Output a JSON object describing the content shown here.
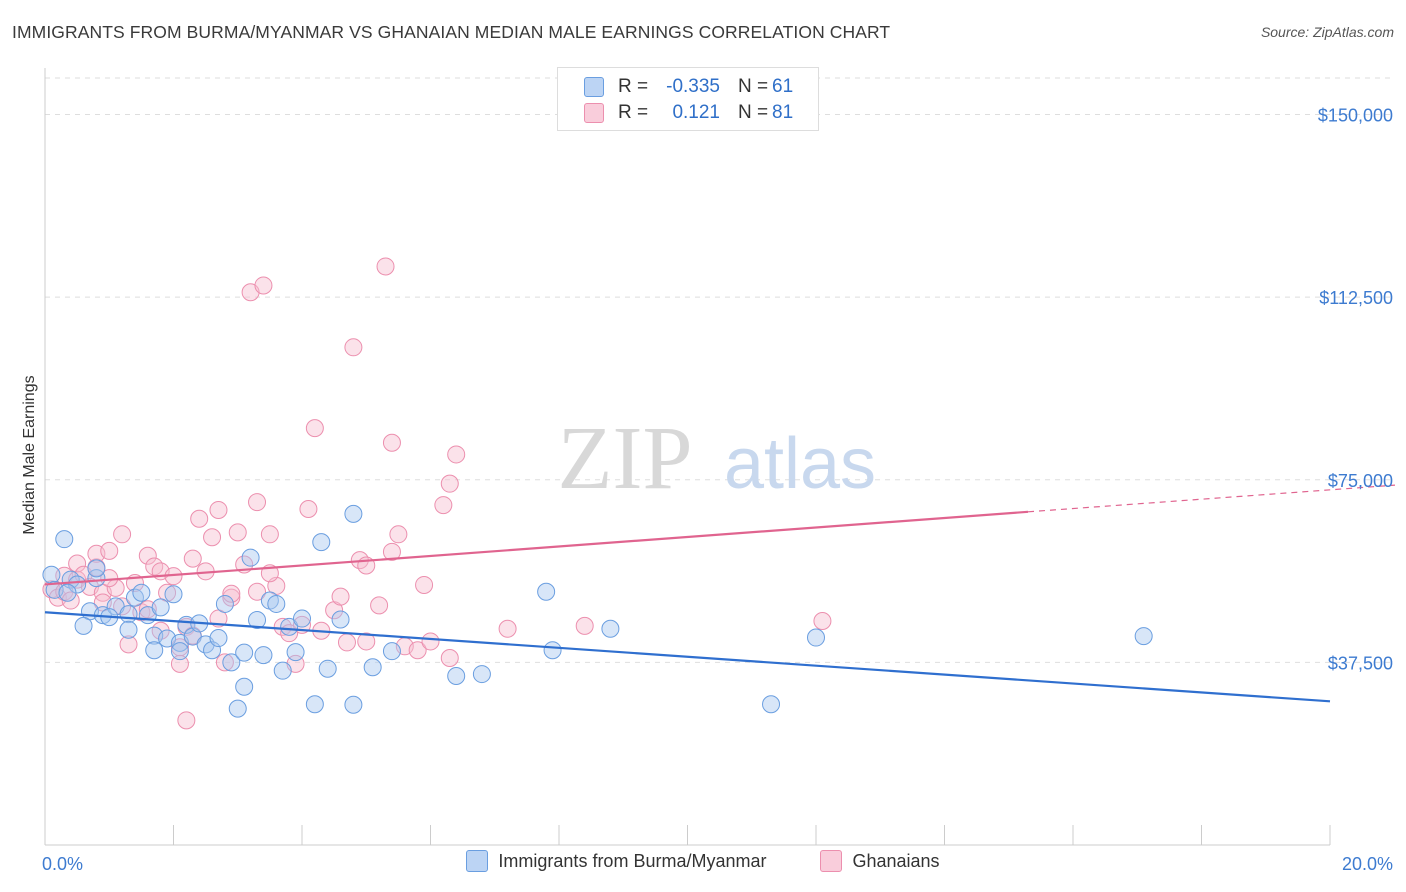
{
  "header": {
    "title": "IMMIGRANTS FROM BURMA/MYANMAR VS GHANAIAN MEDIAN MALE EARNINGS CORRELATION CHART",
    "source": "Source: ZipAtlas.com"
  },
  "legend": {
    "rows": [
      {
        "r_label": "R =",
        "r_value": "-0.335",
        "n_label": "N =",
        "n_value": "61"
      },
      {
        "r_label": "R =",
        "r_value": "0.121",
        "n_label": "N =",
        "n_value": "81"
      }
    ]
  },
  "colors": {
    "blue_fill": "#a9c8f0",
    "blue_stroke": "#6a9ee0",
    "blue_line": "#2f6fcf",
    "pink_fill": "#f7bfd1",
    "pink_stroke": "#ec8fae",
    "pink_line": "#e0648f",
    "axis_text": "#3d7bd0",
    "grid": "#dddddd"
  },
  "watermark": {
    "zip": "ZIP",
    "atlas": "atlas"
  },
  "chart_data": {
    "type": "scatter",
    "title": "IMMIGRANTS FROM BURMA/MYANMAR VS GHANAIAN MEDIAN MALE EARNINGS CORRELATION CHART",
    "xlabel": "",
    "ylabel": "Median Male Earnings",
    "xlim": [
      0,
      20
    ],
    "ylim": [
      0,
      157500
    ],
    "x_ticks": [
      {
        "v": 0,
        "label": "0.0%"
      },
      {
        "v": 20,
        "label": "20.0%"
      }
    ],
    "y_ticks": [
      {
        "v": 37500,
        "label": "$37,500"
      },
      {
        "v": 75000,
        "label": "$75,000"
      },
      {
        "v": 112500,
        "label": "$112,500"
      },
      {
        "v": 150000,
        "label": "$150,000"
      }
    ],
    "grid": true,
    "legend_position": "top-center",
    "series": [
      {
        "name": "Immigrants from Burma/Myanmar",
        "color": "#a9c8f0",
        "trend": {
          "x0": 0,
          "y0": 47800,
          "x1": 20,
          "y1": 29500,
          "dashed_from": null
        },
        "points": [
          [
            0.1,
            55500
          ],
          [
            0.3,
            62800
          ],
          [
            0.4,
            54500
          ],
          [
            0.5,
            53500
          ],
          [
            0.7,
            48000
          ],
          [
            0.6,
            45000
          ],
          [
            0.8,
            54800
          ],
          [
            0.8,
            56800
          ],
          [
            0.9,
            47200
          ],
          [
            1.1,
            49000
          ],
          [
            1.0,
            46800
          ],
          [
            1.3,
            47400
          ],
          [
            1.3,
            44200
          ],
          [
            1.4,
            50800
          ],
          [
            1.5,
            51800
          ],
          [
            1.6,
            47200
          ],
          [
            1.7,
            43000
          ],
          [
            1.7,
            40000
          ],
          [
            1.8,
            48800
          ],
          [
            1.9,
            42400
          ],
          [
            2.0,
            51500
          ],
          [
            2.1,
            41500
          ],
          [
            2.1,
            39800
          ],
          [
            2.2,
            45200
          ],
          [
            2.3,
            42800
          ],
          [
            2.4,
            45500
          ],
          [
            2.5,
            41200
          ],
          [
            2.6,
            40000
          ],
          [
            2.7,
            42500
          ],
          [
            2.8,
            49500
          ],
          [
            2.9,
            37500
          ],
          [
            3.0,
            28000
          ],
          [
            3.1,
            32500
          ],
          [
            3.1,
            39500
          ],
          [
            3.2,
            59000
          ],
          [
            3.3,
            46200
          ],
          [
            3.4,
            39000
          ],
          [
            3.5,
            50200
          ],
          [
            3.6,
            49500
          ],
          [
            3.7,
            35800
          ],
          [
            3.8,
            44800
          ],
          [
            3.9,
            39600
          ],
          [
            4.0,
            46500
          ],
          [
            4.2,
            28900
          ],
          [
            4.3,
            62200
          ],
          [
            4.4,
            36200
          ],
          [
            4.6,
            46300
          ],
          [
            4.8,
            28800
          ],
          [
            4.8,
            68000
          ],
          [
            5.1,
            36500
          ],
          [
            5.4,
            39800
          ],
          [
            6.4,
            34700
          ],
          [
            6.8,
            35100
          ],
          [
            7.8,
            52000
          ],
          [
            7.9,
            40000
          ],
          [
            8.8,
            44400
          ],
          [
            11.3,
            28900
          ],
          [
            12.0,
            42600
          ],
          [
            17.1,
            42900
          ],
          [
            0.15,
            52400
          ],
          [
            0.35,
            51800
          ]
        ]
      },
      {
        "name": "Ghanaians",
        "color": "#f7bfd1",
        "trend": {
          "x0": 0,
          "y0": 53500,
          "x1": 20,
          "y1": 73000,
          "dashed_from": 15.3
        },
        "points": [
          [
            0.1,
            52500
          ],
          [
            0.2,
            50800
          ],
          [
            0.3,
            55300
          ],
          [
            0.3,
            52000
          ],
          [
            0.5,
            54500
          ],
          [
            0.5,
            57800
          ],
          [
            0.6,
            55500
          ],
          [
            0.7,
            53000
          ],
          [
            0.8,
            57000
          ],
          [
            0.8,
            59800
          ],
          [
            0.9,
            51800
          ],
          [
            1.0,
            60400
          ],
          [
            1.1,
            52800
          ],
          [
            1.2,
            63800
          ],
          [
            1.2,
            49000
          ],
          [
            1.3,
            41200
          ],
          [
            1.4,
            53800
          ],
          [
            1.5,
            47800
          ],
          [
            1.6,
            59400
          ],
          [
            1.7,
            57200
          ],
          [
            1.8,
            56200
          ],
          [
            1.8,
            44000
          ],
          [
            1.9,
            51800
          ],
          [
            2.0,
            55200
          ],
          [
            2.1,
            40600
          ],
          [
            2.1,
            37200
          ],
          [
            2.2,
            25600
          ],
          [
            2.2,
            44800
          ],
          [
            2.3,
            43000
          ],
          [
            2.4,
            67000
          ],
          [
            2.5,
            56200
          ],
          [
            2.6,
            63200
          ],
          [
            2.7,
            68800
          ],
          [
            2.7,
            46500
          ],
          [
            2.8,
            37500
          ],
          [
            2.9,
            50800
          ],
          [
            3.0,
            64200
          ],
          [
            3.1,
            57600
          ],
          [
            3.2,
            113500
          ],
          [
            3.3,
            70400
          ],
          [
            3.3,
            52000
          ],
          [
            3.4,
            114900
          ],
          [
            3.5,
            63800
          ],
          [
            3.6,
            53200
          ],
          [
            3.7,
            44800
          ],
          [
            3.8,
            43500
          ],
          [
            3.9,
            37200
          ],
          [
            4.1,
            69000
          ],
          [
            4.2,
            85600
          ],
          [
            4.3,
            44000
          ],
          [
            4.5,
            48200
          ],
          [
            4.6,
            51000
          ],
          [
            4.8,
            102200
          ],
          [
            4.9,
            58500
          ],
          [
            5.0,
            57400
          ],
          [
            5.0,
            41800
          ],
          [
            5.2,
            49200
          ],
          [
            5.3,
            118800
          ],
          [
            5.4,
            82600
          ],
          [
            5.4,
            60200
          ],
          [
            5.5,
            63800
          ],
          [
            5.6,
            40800
          ],
          [
            5.8,
            40000
          ],
          [
            5.9,
            53400
          ],
          [
            6.0,
            41800
          ],
          [
            6.2,
            69800
          ],
          [
            6.3,
            38400
          ],
          [
            6.3,
            74200
          ],
          [
            6.4,
            80200
          ],
          [
            7.2,
            44400
          ],
          [
            8.4,
            45000
          ],
          [
            12.1,
            46000
          ],
          [
            4.7,
            41600
          ],
          [
            4.0,
            45200
          ],
          [
            1.6,
            48400
          ],
          [
            0.4,
            50200
          ],
          [
            2.9,
            51600
          ],
          [
            3.5,
            55800
          ],
          [
            1.0,
            54800
          ],
          [
            0.9,
            49800
          ],
          [
            2.3,
            58800
          ]
        ]
      }
    ]
  },
  "bottom_legend": {
    "items": [
      {
        "label": "Immigrants from Burma/Myanmar"
      },
      {
        "label": "Ghanaians"
      }
    ]
  }
}
